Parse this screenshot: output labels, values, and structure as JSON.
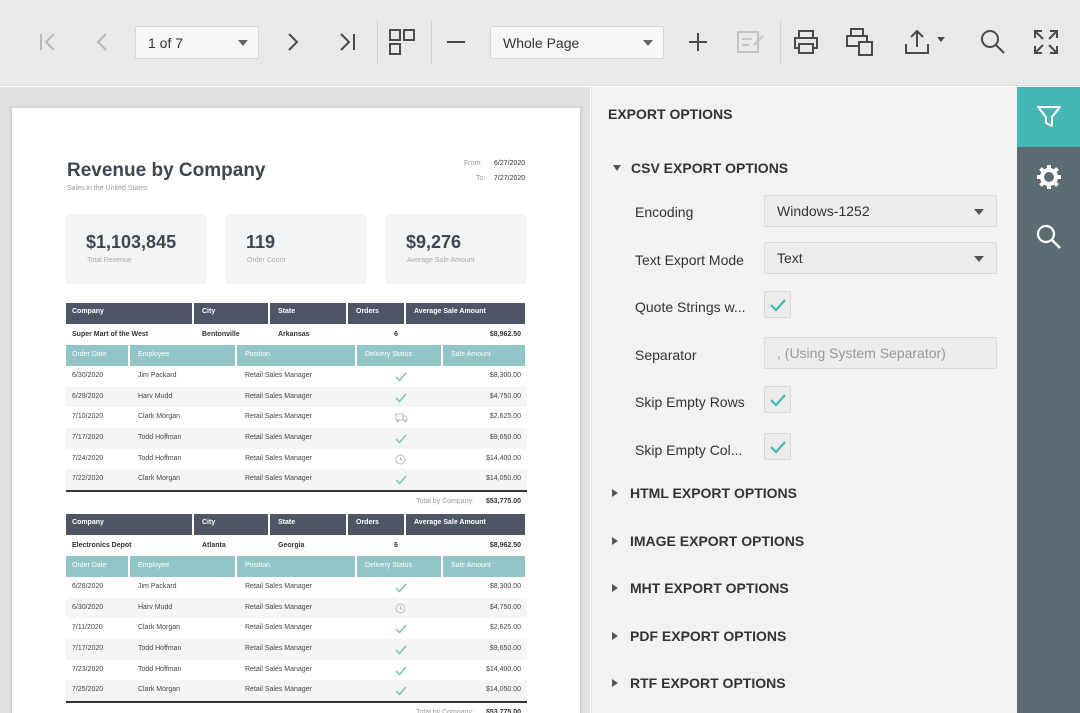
{
  "toolbar": {
    "page_selector": "1 of 7",
    "zoom_selector": "Whole Page",
    "accent_color": "#45b6b4"
  },
  "report": {
    "title": "Revenue by Company",
    "subtitle": "Sales in the United States",
    "from_label": "From:",
    "from_value": "6/27/2020",
    "to_label": "To:",
    "to_value": "7/27/2020",
    "kpis": [
      {
        "value": "$1,103,845",
        "label": "Total Revenue"
      },
      {
        "value": "119",
        "label": "Order Count"
      },
      {
        "value": "$9,276",
        "label": "Average Sale Amount"
      }
    ],
    "company_headers": [
      "Company",
      "City",
      "State",
      "Orders",
      "Average Sale Amount"
    ],
    "order_headers": [
      "Order Date",
      "Employee",
      "Position",
      "Delivery Status",
      "Sale Amount"
    ],
    "total_label": "Total by Company:",
    "groups": [
      {
        "company": "Super Mart of the West",
        "city": "Bentonville",
        "state": "Arkansas",
        "orders": "6",
        "avg": "$8,962.50",
        "rows": [
          {
            "date": "6/30/2020",
            "employee": "Jim Packard",
            "position": "Retail Sales Manager",
            "status": "check",
            "amount": "$8,300.00"
          },
          {
            "date": "6/29/2020",
            "employee": "Harv Mudd",
            "position": "Retail Sales Manager",
            "status": "check",
            "amount": "$4,750.00"
          },
          {
            "date": "7/10/2020",
            "employee": "Clark Morgan",
            "position": "Retail Sales Manager",
            "status": "truck",
            "amount": "$2,625.00"
          },
          {
            "date": "7/17/2020",
            "employee": "Todd Hoffman",
            "position": "Retail Sales Manager",
            "status": "check",
            "amount": "$9,650.00"
          },
          {
            "date": "7/24/2020",
            "employee": "Todd Hoffman",
            "position": "Retail Sales Manager",
            "status": "clock",
            "amount": "$14,400.00"
          },
          {
            "date": "7/22/2020",
            "employee": "Clark Morgan",
            "position": "Retail Sales Manager",
            "status": "check",
            "amount": "$14,050.00"
          }
        ],
        "total": "$53,775.00"
      },
      {
        "company": "Electronics Depot",
        "city": "Atlanta",
        "state": "Georgia",
        "orders": "6",
        "avg": "$8,962.50",
        "rows": [
          {
            "date": "6/28/2020",
            "employee": "Jim Packard",
            "position": "Retail Sales Manager",
            "status": "check",
            "amount": "$8,300.00"
          },
          {
            "date": "6/30/2020",
            "employee": "Harv Mudd",
            "position": "Retail Sales Manager",
            "status": "clock",
            "amount": "$4,750.00"
          },
          {
            "date": "7/11/2020",
            "employee": "Clark Morgan",
            "position": "Retail Sales Manager",
            "status": "check",
            "amount": "$2,625.00"
          },
          {
            "date": "7/17/2020",
            "employee": "Todd Hoffman",
            "position": "Retail Sales Manager",
            "status": "check",
            "amount": "$9,650.00"
          },
          {
            "date": "7/23/2020",
            "employee": "Todd Hoffman",
            "position": "Retail Sales Manager",
            "status": "check",
            "amount": "$14,400.00"
          },
          {
            "date": "7/25/2020",
            "employee": "Clark Morgan",
            "position": "Retail Sales Manager",
            "status": "check",
            "amount": "$14,050.00"
          }
        ],
        "total": "$53,775.00"
      }
    ]
  },
  "export_panel": {
    "title": "EXPORT OPTIONS",
    "csv_section": "CSV EXPORT OPTIONS",
    "encoding_label": "Encoding",
    "encoding_value": "Windows-1252",
    "text_mode_label": "Text Export Mode",
    "text_mode_value": "Text",
    "quote_label": "Quote Strings w...",
    "separator_label": "Separator",
    "separator_placeholder": ", (Using System Separator)",
    "skip_rows_label": "Skip Empty Rows",
    "skip_cols_label": "Skip Empty Col...",
    "sections": [
      "HTML EXPORT OPTIONS",
      "IMAGE EXPORT OPTIONS",
      "MHT EXPORT OPTIONS",
      "PDF EXPORT OPTIONS",
      "RTF EXPORT OPTIONS"
    ]
  },
  "side_tabs": [
    "filter-icon",
    "gear-icon",
    "search-icon"
  ]
}
